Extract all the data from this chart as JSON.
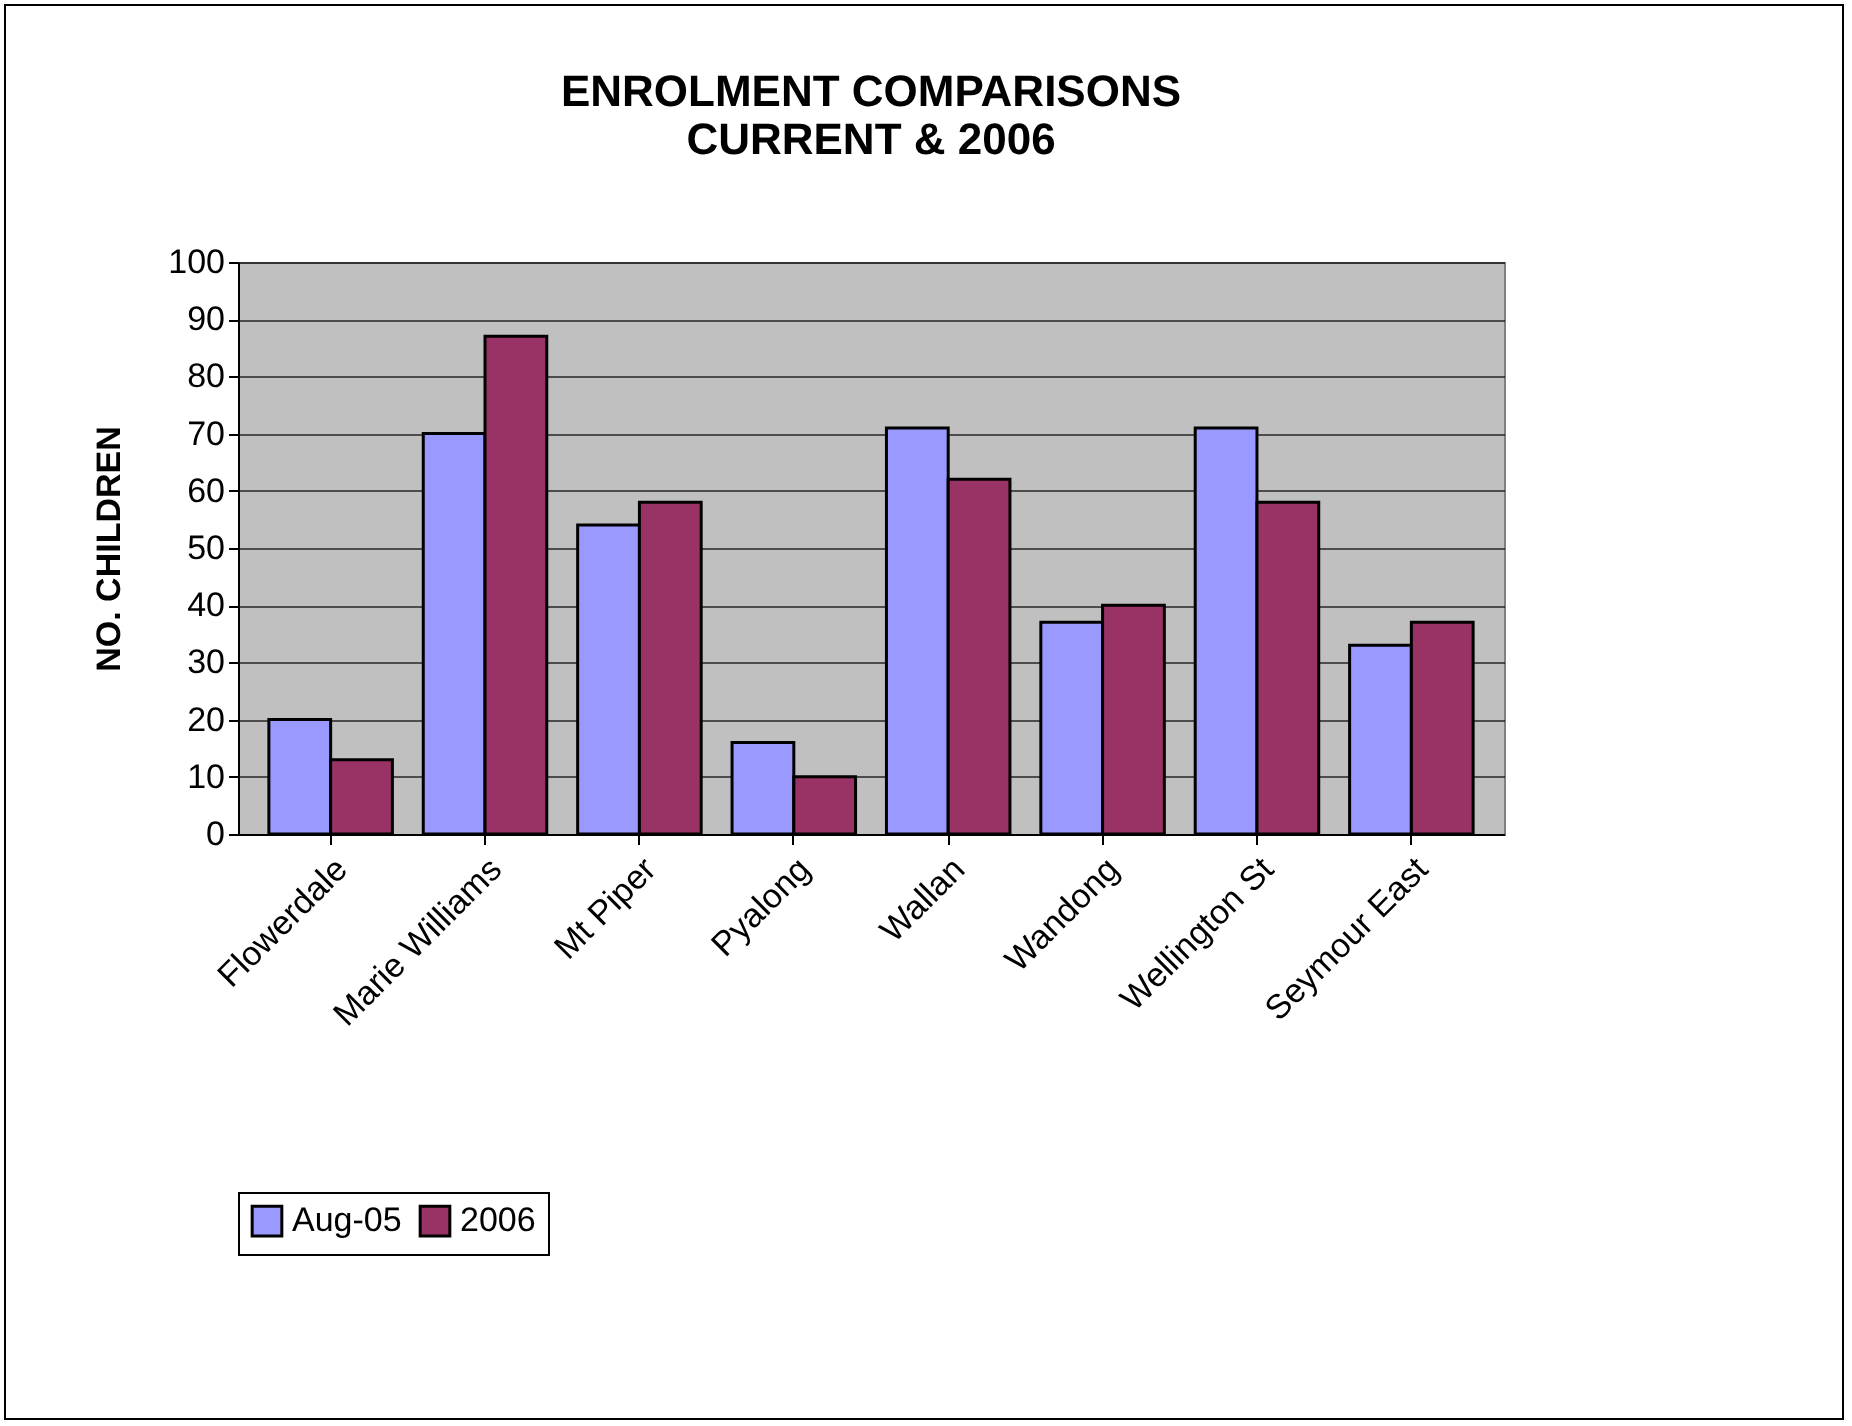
{
  "chart_data": {
    "type": "bar",
    "title": "ENROLMENT COMPARISONS\nCURRENT & 2006",
    "ylabel": "NO. CHILDREN",
    "categories": [
      "Flowerdale",
      "Marie Williams",
      "Mt Piper",
      "Pyalong",
      "Wallan",
      "Wandong",
      "Wellington St",
      "Seymour East"
    ],
    "series": [
      {
        "name": "Aug-05",
        "color": "#9999ff",
        "values": [
          20,
          70,
          54,
          16,
          71,
          37,
          71,
          33
        ]
      },
      {
        "name": "2006",
        "color": "#993366",
        "values": [
          13,
          87,
          58,
          10,
          62,
          40,
          58,
          37
        ]
      }
    ],
    "ylim": [
      0,
      100
    ],
    "yticks": [
      0,
      10,
      20,
      30,
      40,
      50,
      60,
      70,
      80,
      90,
      100
    ],
    "grid": "y",
    "legend": "bottom"
  }
}
